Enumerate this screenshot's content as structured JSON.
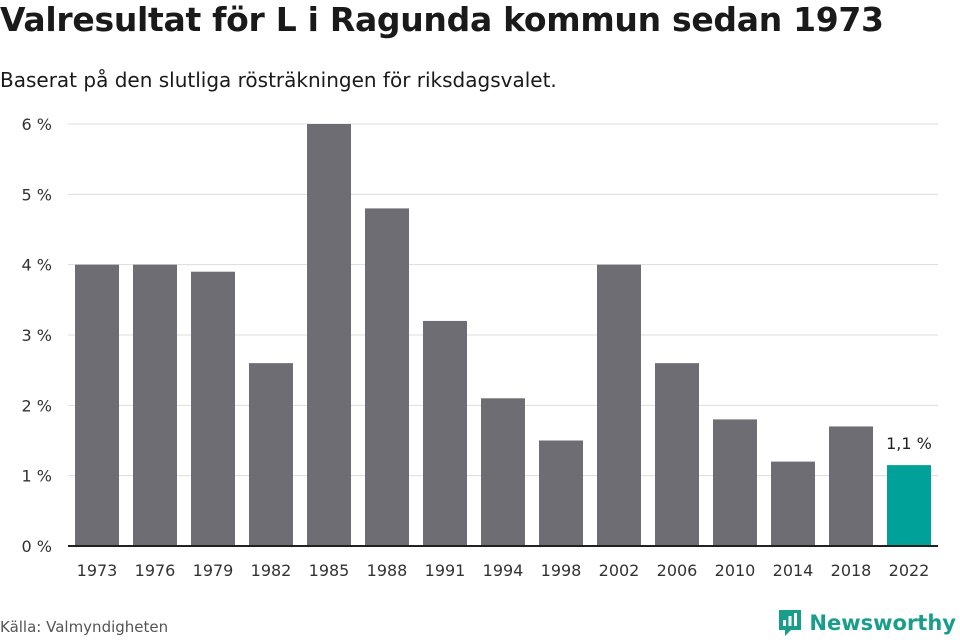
{
  "header": {
    "title": "Valresultat för L i Ragunda kommun sedan 1973",
    "subtitle": "Baserat på den slutliga rösträkningen för riksdagsvalet."
  },
  "footer": {
    "source": "Källa: Valmyndigheten",
    "brand": "Newsworthy",
    "brand_icon": "newsworthy-logo-icon"
  },
  "colors": {
    "bar": "#6e6d73",
    "highlight": "#00a199",
    "grid": "#dddddd",
    "axis": "#222222",
    "brand": "#1a9e8c"
  },
  "chart_data": {
    "type": "bar",
    "title": "Valresultat för L i Ragunda kommun sedan 1973",
    "subtitle": "Baserat på den slutliga rösträkningen för riksdagsvalet.",
    "categories": [
      "1973",
      "1976",
      "1979",
      "1982",
      "1985",
      "1988",
      "1991",
      "1994",
      "1998",
      "2002",
      "2006",
      "2010",
      "2014",
      "2018",
      "2022"
    ],
    "values": [
      4.0,
      4.0,
      3.9,
      2.6,
      6.0,
      4.8,
      3.2,
      2.1,
      1.5,
      4.0,
      2.6,
      1.8,
      1.2,
      1.7,
      1.15
    ],
    "ylim": [
      0,
      6
    ],
    "yticks": [
      0,
      1,
      2,
      3,
      4,
      5,
      6
    ],
    "ytick_labels": [
      "0 %",
      "1 %",
      "2 %",
      "3 %",
      "4 %",
      "5 %",
      "6 %"
    ],
    "highlight_index": 14,
    "annotation": "1,1 %",
    "grid": true,
    "legend": "none",
    "xlabel": "",
    "ylabel": ""
  }
}
